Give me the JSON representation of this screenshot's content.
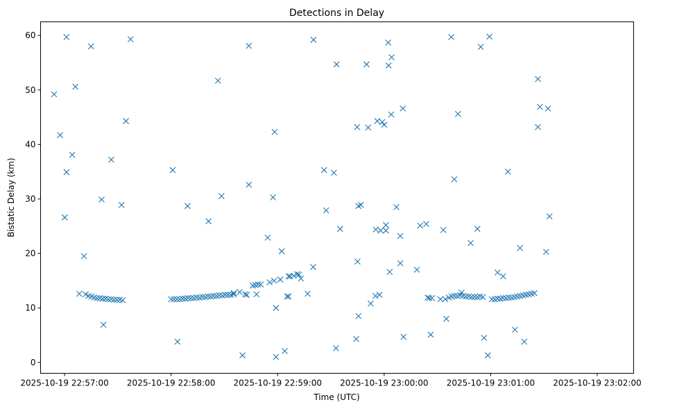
{
  "chart_data": {
    "type": "scatter",
    "title": "Detections in Delay",
    "xlabel": "Time (UTC)",
    "ylabel": "Bistatic Delay (km)",
    "marker": "x",
    "color": "#1f77b4",
    "x_unit": "seconds since 2025-10-19 22:56:00",
    "xlim": [
      46.5,
      380.5
    ],
    "ylim": [
      -2,
      62.5
    ],
    "xticks": [
      {
        "value": 60,
        "label": "2025-10-19 22:57:00"
      },
      {
        "value": 120,
        "label": "2025-10-19 22:58:00"
      },
      {
        "value": 180,
        "label": "2025-10-19 22:59:00"
      },
      {
        "value": 240,
        "label": "2025-10-19 23:00:00"
      },
      {
        "value": 300,
        "label": "2025-10-19 23:01:00"
      },
      {
        "value": 360,
        "label": "2025-10-19 23:02:00"
      }
    ],
    "yticks": [
      {
        "value": 0,
        "label": "0"
      },
      {
        "value": 10,
        "label": "10"
      },
      {
        "value": 20,
        "label": "20"
      },
      {
        "value": 30,
        "label": "30"
      },
      {
        "value": 40,
        "label": "40"
      },
      {
        "value": 50,
        "label": "50"
      },
      {
        "value": 60,
        "label": "60"
      }
    ],
    "points": [
      [
        54.1,
        49.2
      ],
      [
        57.5,
        41.7
      ],
      [
        61.1,
        59.7
      ],
      [
        61.1,
        34.9
      ],
      [
        60.1,
        26.6
      ],
      [
        66.1,
        50.6
      ],
      [
        64.3,
        38.1
      ],
      [
        74.9,
        58.0
      ],
      [
        71.0,
        19.5
      ],
      [
        68.3,
        12.6
      ],
      [
        71.9,
        12.5
      ],
      [
        73.5,
        12.2
      ],
      [
        75.1,
        12.1
      ],
      [
        76.7,
        11.9
      ],
      [
        78.3,
        11.8
      ],
      [
        79.9,
        11.8
      ],
      [
        81.5,
        11.7
      ],
      [
        83.1,
        11.7
      ],
      [
        84.7,
        11.6
      ],
      [
        86.3,
        11.6
      ],
      [
        87.9,
        11.5
      ],
      [
        89.5,
        11.5
      ],
      [
        91.1,
        11.5
      ],
      [
        92.7,
        11.4
      ],
      [
        80.9,
        29.9
      ],
      [
        81.9,
        6.9
      ],
      [
        86.3,
        37.2
      ],
      [
        92.1,
        28.9
      ],
      [
        94.6,
        44.3
      ],
      [
        97.2,
        59.3
      ],
      [
        120.9,
        35.3
      ],
      [
        120.0,
        11.6
      ],
      [
        121.6,
        11.6
      ],
      [
        123.2,
        11.6
      ],
      [
        124.8,
        11.6
      ],
      [
        126.4,
        11.7
      ],
      [
        128.0,
        11.7
      ],
      [
        129.6,
        11.8
      ],
      [
        131.2,
        11.8
      ],
      [
        132.8,
        11.8
      ],
      [
        134.4,
        11.9
      ],
      [
        136.0,
        11.9
      ],
      [
        137.6,
        12.0
      ],
      [
        139.2,
        12.0
      ],
      [
        140.8,
        12.1
      ],
      [
        142.4,
        12.1
      ],
      [
        144.0,
        12.2
      ],
      [
        145.6,
        12.2
      ],
      [
        147.2,
        12.3
      ],
      [
        148.8,
        12.3
      ],
      [
        150.4,
        12.4
      ],
      [
        152.0,
        12.4
      ],
      [
        153.6,
        12.4
      ],
      [
        155.2,
        12.5
      ],
      [
        123.6,
        3.8
      ],
      [
        129.3,
        28.7
      ],
      [
        141.1,
        25.9
      ],
      [
        146.4,
        51.7
      ],
      [
        148.4,
        30.5
      ],
      [
        155.3,
        12.7
      ],
      [
        158.6,
        12.9
      ],
      [
        161.7,
        12.5
      ],
      [
        162.6,
        12.4
      ],
      [
        163.8,
        58.1
      ],
      [
        163.8,
        32.6
      ],
      [
        160.2,
        1.3
      ],
      [
        166.0,
        14.1
      ],
      [
        167.5,
        14.2
      ],
      [
        169.0,
        14.3
      ],
      [
        170.5,
        14.3
      ],
      [
        168.1,
        12.5
      ],
      [
        174.4,
        22.9
      ],
      [
        175.5,
        14.7
      ],
      [
        177.4,
        30.3
      ],
      [
        178.0,
        15.0
      ],
      [
        178.3,
        42.3
      ],
      [
        179.1,
        10.0
      ],
      [
        179.1,
        1.0
      ],
      [
        181.5,
        15.2
      ],
      [
        182.3,
        20.4
      ],
      [
        184.0,
        2.1
      ],
      [
        185.3,
        12.1
      ],
      [
        186.2,
        12.1
      ],
      [
        186.2,
        15.8
      ],
      [
        187.0,
        15.8
      ],
      [
        189.0,
        15.9
      ],
      [
        191.0,
        16.2
      ],
      [
        192.0,
        16.1
      ],
      [
        193.1,
        15.4
      ],
      [
        196.9,
        12.6
      ],
      [
        200.2,
        59.2
      ],
      [
        200.0,
        17.5
      ],
      [
        206.2,
        35.3
      ],
      [
        207.3,
        27.9
      ],
      [
        211.7,
        34.8
      ],
      [
        212.9,
        2.6
      ],
      [
        213.2,
        54.7
      ],
      [
        215.2,
        24.5
      ],
      [
        224.8,
        43.2
      ],
      [
        225.0,
        18.5
      ],
      [
        225.5,
        8.5
      ],
      [
        224.3,
        4.3
      ],
      [
        226.9,
        28.9
      ],
      [
        225.5,
        28.7
      ],
      [
        230.1,
        54.7
      ],
      [
        231.0,
        43.1
      ],
      [
        232.4,
        10.8
      ],
      [
        235.1,
        12.2
      ],
      [
        235.3,
        24.4
      ],
      [
        236.1,
        44.3
      ],
      [
        237.4,
        12.4
      ],
      [
        238.0,
        24.2
      ],
      [
        238.9,
        44.1
      ],
      [
        240.0,
        43.6
      ],
      [
        241.0,
        25.2
      ],
      [
        241.0,
        24.2
      ],
      [
        242.3,
        58.7
      ],
      [
        242.5,
        54.5
      ],
      [
        243.1,
        16.6
      ],
      [
        244.0,
        45.5
      ],
      [
        244.2,
        56.0
      ],
      [
        246.9,
        28.5
      ],
      [
        249.1,
        18.2
      ],
      [
        249.1,
        23.2
      ],
      [
        250.5,
        46.6
      ],
      [
        250.9,
        4.7
      ],
      [
        258.4,
        17.0
      ],
      [
        260.3,
        25.1
      ],
      [
        263.7,
        25.4
      ],
      [
        264.5,
        11.9
      ],
      [
        265.5,
        11.8
      ],
      [
        266.2,
        5.1
      ],
      [
        267.0,
        11.8
      ],
      [
        271.7,
        11.6
      ],
      [
        273.3,
        24.3
      ],
      [
        274.4,
        11.6
      ],
      [
        275.0,
        8.0
      ],
      [
        276.4,
        11.9
      ],
      [
        278.0,
        12.1
      ],
      [
        279.6,
        12.2
      ],
      [
        281.2,
        12.2
      ],
      [
        282.8,
        12.3
      ],
      [
        284.4,
        12.2
      ],
      [
        286.0,
        12.1
      ],
      [
        287.6,
        12.1
      ],
      [
        289.2,
        12.0
      ],
      [
        290.8,
        12.0
      ],
      [
        292.4,
        12.0
      ],
      [
        294.0,
        12.1
      ],
      [
        295.6,
        12.0
      ],
      [
        277.8,
        59.7
      ],
      [
        281.6,
        45.6
      ],
      [
        279.5,
        33.6
      ],
      [
        283.6,
        12.8
      ],
      [
        288.7,
        21.9
      ],
      [
        292.5,
        24.5
      ],
      [
        294.4,
        57.9
      ],
      [
        296.3,
        4.5
      ],
      [
        298.4,
        1.3
      ],
      [
        299.3,
        59.8
      ],
      [
        300.6,
        11.6
      ],
      [
        302.2,
        11.6
      ],
      [
        303.8,
        11.7
      ],
      [
        305.4,
        11.7
      ],
      [
        307.0,
        11.8
      ],
      [
        308.6,
        11.8
      ],
      [
        310.2,
        11.9
      ],
      [
        311.8,
        11.9
      ],
      [
        313.4,
        12.0
      ],
      [
        315.0,
        12.1
      ],
      [
        316.6,
        12.2
      ],
      [
        318.2,
        12.3
      ],
      [
        319.8,
        12.4
      ],
      [
        321.4,
        12.5
      ],
      [
        323.0,
        12.6
      ],
      [
        324.6,
        12.7
      ],
      [
        303.9,
        16.5
      ],
      [
        307.0,
        15.8
      ],
      [
        309.7,
        35.0
      ],
      [
        313.6,
        6.0
      ],
      [
        316.5,
        21.0
      ],
      [
        318.9,
        3.8
      ],
      [
        326.6,
        52.0
      ],
      [
        326.6,
        43.2
      ],
      [
        327.7,
        46.9
      ],
      [
        332.3,
        46.6
      ],
      [
        333.1,
        26.8
      ],
      [
        331.2,
        20.3
      ]
    ]
  }
}
